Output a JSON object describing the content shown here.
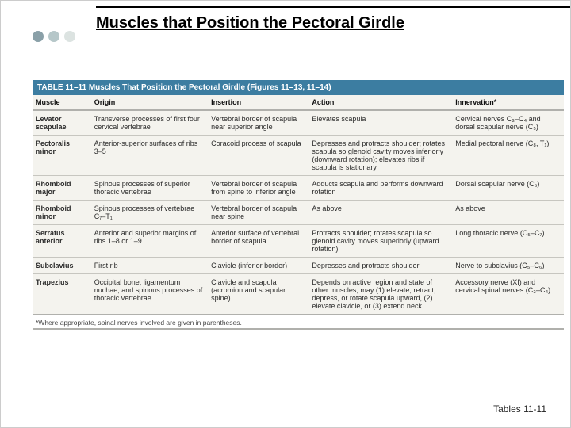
{
  "dots": {
    "colors": [
      "#8aa0a8",
      "#b6c7c9",
      "#dce3e1"
    ]
  },
  "title": "Muscles that Position the Pectoral Girdle",
  "table": {
    "caption": "TABLE 11–11   Muscles That Position the Pectoral Girdle (Figures 11–13, 11–14)",
    "caption_bg": "#3c7da1",
    "caption_color": "#ffffff",
    "bg": "#f4f3ee",
    "border_color": "#b0b0ac",
    "row_divider": "#c7c6c0",
    "columns": [
      "Muscle",
      "Origin",
      "Insertion",
      "Action",
      "Innervation*"
    ],
    "rows": [
      {
        "muscle": "Levator scapulae",
        "origin": "Transverse processes of first four cervical vertebrae",
        "insertion": "Vertebral border of scapula near superior angle",
        "action": "Elevates scapula",
        "innervation": "Cervical nerves C₃–C₄ and dorsal scapular nerve (C₅)"
      },
      {
        "muscle": "Pectoralis minor",
        "origin": "Anterior-superior surfaces of ribs 3–5",
        "insertion": "Coracoid process of scapula",
        "action": "Depresses and protracts shoulder; rotates scapula so glenoid cavity moves inferiorly (downward rotation); elevates ribs if scapula is stationary",
        "innervation": "Medial pectoral nerve (C₈, T₁)"
      },
      {
        "muscle": "Rhomboid major",
        "origin": "Spinous processes of superior thoracic vertebrae",
        "insertion": "Vertebral border of scapula from spine to inferior angle",
        "action": "Adducts scapula and performs downward rotation",
        "innervation": "Dorsal scapular nerve (C₅)"
      },
      {
        "muscle": "Rhomboid minor",
        "origin": "Spinous processes of vertebrae C₇–T₁",
        "insertion": "Vertebral border of scapula near spine",
        "action": "As above",
        "innervation": "As above"
      },
      {
        "muscle": "Serratus anterior",
        "origin": "Anterior and superior margins of ribs 1–8 or 1–9",
        "insertion": "Anterior surface of vertebral border of scapula",
        "action": "Protracts shoulder; rotates scapula so glenoid cavity moves superiorly (upward rotation)",
        "innervation": "Long thoracic nerve (C₅–C₇)"
      },
      {
        "muscle": "Subclavius",
        "origin": "First rib",
        "insertion": "Clavicle (inferior border)",
        "action": "Depresses and protracts shoulder",
        "innervation": "Nerve to subclavius (C₅–C₆)"
      },
      {
        "muscle": "Trapezius",
        "origin": "Occipital bone, ligamentum nuchae, and spinous processes of thoracic vertebrae",
        "insertion": "Clavicle and scapula (acromion and scapular spine)",
        "action": "Depends on active region and state of other muscles; may (1) elevate, retract, depress, or rotate scapula upward, (2) elevate clavicle, or (3) extend neck",
        "innervation": "Accessory nerve (XI) and cervical spinal nerves (C₃–C₄)"
      }
    ],
    "footnote": "*Where appropriate, spinal nerves involved are given in parentheses."
  },
  "footer": "Tables 11-11"
}
